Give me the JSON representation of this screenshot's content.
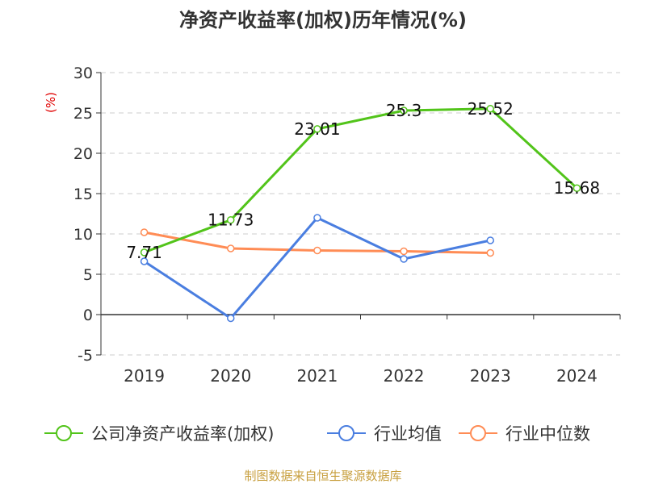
{
  "chart_data": {
    "type": "line",
    "title": "净资产收益率(加权)历年情况(%)",
    "ylabel": "(%)",
    "categories": [
      "2019",
      "2020",
      "2021",
      "2022",
      "2023",
      "2024"
    ],
    "ylim": [
      -5,
      30
    ],
    "yticks": [
      "30",
      "25",
      "20",
      "15",
      "10",
      "5",
      "0",
      "-5"
    ],
    "grid": true,
    "legend_position": "bottom",
    "series": [
      {
        "name": "公司净资产收益率(加权)",
        "color": "#52c41a",
        "values": [
          7.71,
          11.73,
          23.01,
          25.3,
          25.52,
          15.68
        ],
        "labels": [
          "7.71",
          "11.73",
          "23.01",
          "25.3",
          "25.52",
          "15.68"
        ]
      },
      {
        "name": "行业均值",
        "color": "#4a7ee0",
        "values": [
          6.6,
          -0.45,
          12.0,
          6.9,
          9.2,
          null
        ]
      },
      {
        "name": "行业中位数",
        "color": "#ff8c55",
        "values": [
          10.2,
          8.2,
          7.95,
          7.85,
          7.65,
          null
        ]
      }
    ]
  },
  "footer": "制图数据来自恒生聚源数据库",
  "colors": {
    "ylabel": "#e00000",
    "footer": "#c8a040"
  }
}
